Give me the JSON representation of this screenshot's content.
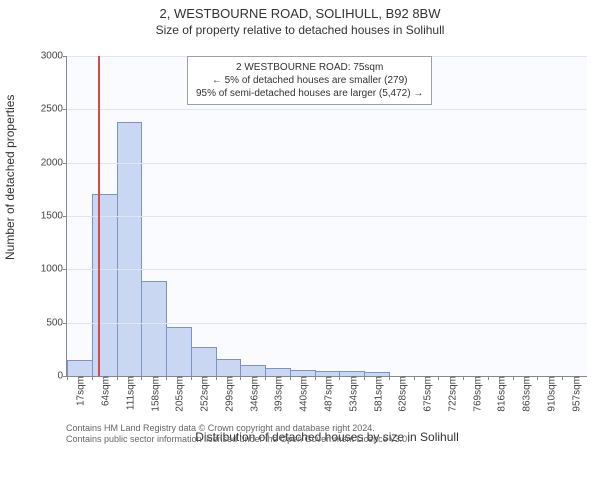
{
  "title": "2, WESTBOURNE ROAD, SOLIHULL, B92 8BW",
  "subtitle": "Size of property relative to detached houses in Solihull",
  "y_axis_label": "Number of detached properties",
  "x_axis_label": "Distribution of detached houses by size in Solihull",
  "footer_line1": "Contains HM Land Registry data © Crown copyright and database right 2024.",
  "footer_line2": "Contains public sector information licensed under the Open Government Licence v3.0.",
  "info_box": {
    "line1": "2 WESTBOURNE ROAD: 75sqm",
    "line2": "← 5% of detached houses are smaller (279)",
    "line3": "95% of semi-detached houses are larger (5,472) →"
  },
  "chart": {
    "type": "histogram",
    "ylim": [
      0,
      3000
    ],
    "ytick_step": 500,
    "background_color": "#f9fbff",
    "grid_color": "#e0e6f0",
    "bar_fill": "#c9d7f2",
    "bar_stroke": "#7a93c9",
    "marker_color": "#d44a4a",
    "marker_value": 75,
    "x_start": 17,
    "x_step": 47,
    "x_count": 21,
    "x_unit": "sqm",
    "values": [
      140,
      1700,
      2370,
      880,
      450,
      260,
      150,
      95,
      65,
      50,
      40,
      35,
      30,
      0,
      0,
      0,
      0,
      0,
      0,
      0,
      0
    ]
  }
}
